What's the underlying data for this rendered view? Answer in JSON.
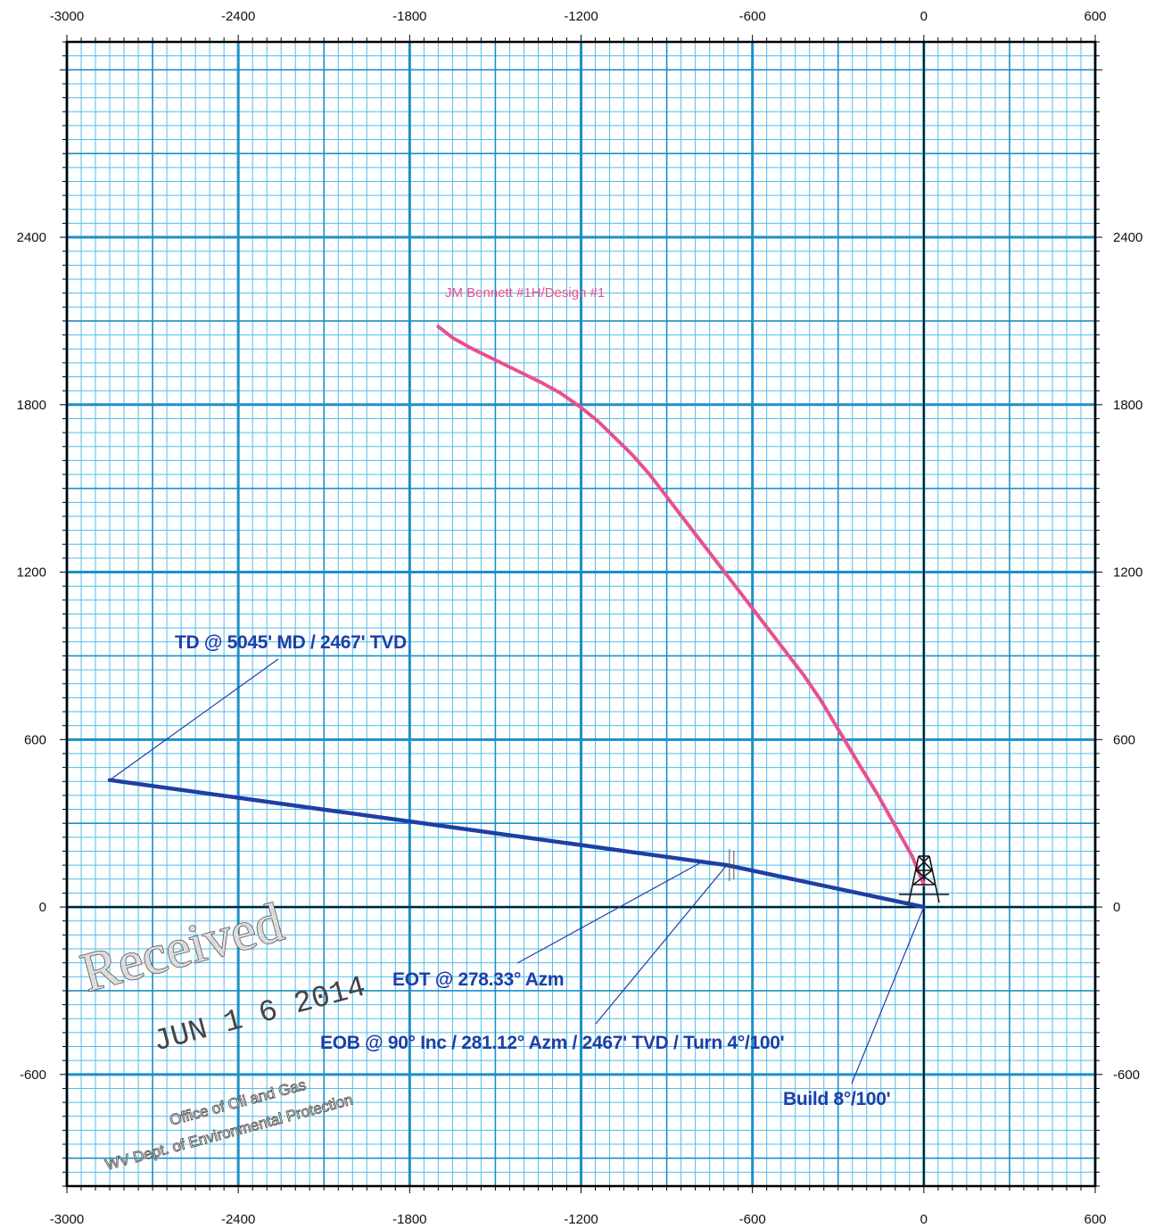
{
  "chart_data": {
    "type": "line",
    "title": "",
    "xlabel": "",
    "ylabel": "",
    "xlim": [
      -3000,
      600
    ],
    "ylim": [
      -1000,
      3100
    ],
    "grid": true,
    "x_ticks": [
      -3000,
      -2400,
      -1800,
      -1200,
      -600,
      0,
      600
    ],
    "y_ticks": [
      2400,
      1800,
      1200,
      600,
      0,
      -600
    ],
    "series": [
      {
        "name": "JM Bennett #1H/Design #1",
        "color": "#e8508e",
        "x": [
          0,
          -40,
          -100,
          -160,
          -220,
          -290,
          -360,
          -420,
          -480,
          -540,
          -600,
          -660,
          -720,
          -780,
          -840,
          -900,
          -960,
          -1020,
          -1080,
          -1140,
          -1200,
          -1270,
          -1340,
          -1420,
          -1500,
          -1580,
          -1650,
          -1700
        ],
        "y": [
          80,
          180,
          290,
          400,
          500,
          620,
          740,
          830,
          910,
          990,
          1070,
          1150,
          1230,
          1310,
          1390,
          1470,
          1550,
          1620,
          1680,
          1740,
          1790,
          1840,
          1880,
          1920,
          1960,
          2000,
          2040,
          2080
        ]
      },
      {
        "name": "",
        "color": "#1f3fa3",
        "x": [
          0,
          -690,
          -2850
        ],
        "y": [
          0,
          150,
          455
        ]
      }
    ],
    "annotations": [
      {
        "text": "TD @ 5045' MD / 2467' TVD",
        "target_x": -2850,
        "target_y": 455
      },
      {
        "text": "EOT @ 278.33° Azm",
        "target_x": -780,
        "target_y": 160
      },
      {
        "text": "EOB @ 90° Inc / 281.12° Azm / 2467' TVD / Turn 4°/100'",
        "target_x": -690,
        "target_y": 150
      },
      {
        "text": "Build 8°/100'",
        "target_x": 0,
        "target_y": 0
      }
    ]
  },
  "stamp": {
    "received": "Received",
    "date": "JUN 1 6 2014",
    "line1": "Office of Oil and Gas",
    "line2": "WV Dept. of Environmental Protection"
  },
  "icons": {
    "rig": "drilling-rig-icon"
  },
  "colors": {
    "grid_major": "#1d8fc9",
    "grid_minor": "#52bde8",
    "axis": "#000000",
    "series_pink": "#e8508e",
    "series_blue": "#1f3fa3",
    "annotation_text": "#1c3fa8"
  }
}
